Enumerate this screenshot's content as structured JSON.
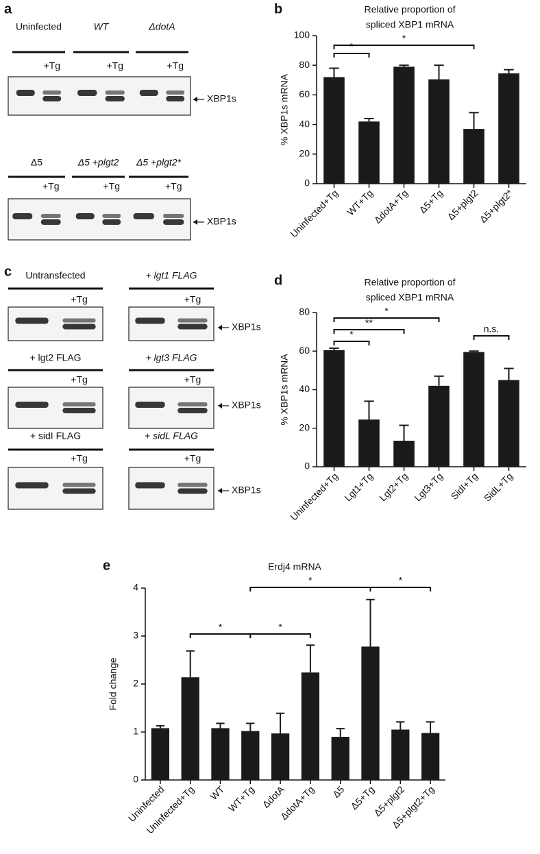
{
  "panel_labels": [
    "a",
    "b",
    "c",
    "d",
    "e"
  ],
  "gels": {
    "a": [
      {
        "labels": [
          "Uninfected",
          "WT",
          "ΔdotA"
        ],
        "treatment": "+Tg",
        "band": "XBP1s"
      },
      {
        "labels": [
          "Δ5",
          "Δ5 +plgt2",
          "Δ5 +plgt2*"
        ],
        "treatment": "+Tg",
        "band": "XBP1s"
      }
    ],
    "c": [
      {
        "labels": [
          "Untransfected",
          "+ lgt1 FLAG"
        ],
        "treatment": "+Tg",
        "band": "XBP1s"
      },
      {
        "labels": [
          "+ lgt2 FLAG",
          "+ lgt3 FLAG"
        ],
        "treatment": "+Tg",
        "band": "XBP1s"
      },
      {
        "labels": [
          "+ sidI FLAG",
          "+ sidL FLAG"
        ],
        "treatment": "+Tg",
        "band": "XBP1s"
      }
    ]
  },
  "chart_data": [
    {
      "type": "bar",
      "title": [
        "Relative proportion of",
        "spliced XBP1 mRNA"
      ],
      "y_label": "% XBP1s mRNA",
      "categories": [
        "Uninfected+Tg",
        "WT+Tg",
        "ΔdotA+Tg",
        "Δ5+Tg",
        "Δ5+plgt2",
        "Δ5+plgt2*"
      ],
      "values": [
        72,
        42,
        79,
        70.5,
        37,
        74.5
      ],
      "errors": [
        6,
        2,
        1,
        9.5,
        11,
        2.5
      ],
      "color": "#1a1a1a",
      "ylim": [
        0,
        100
      ],
      "yticks": [
        0,
        20,
        40,
        60,
        80,
        100
      ],
      "brackets": [
        {
          "between": [
            "Uninfected+Tg",
            "WT+Tg"
          ],
          "label": "*"
        },
        {
          "between": [
            "Uninfected+Tg",
            "Δ5+plgt2"
          ],
          "label": "*"
        }
      ]
    },
    {
      "type": "bar",
      "title": [
        "Relative proportion of",
        "spliced XBP1 mRNA"
      ],
      "y_label": "% XBP1s mRNA",
      "categories": [
        "Uninfected+Tg",
        "Lgt1+Tg",
        "Lgt2+Tg",
        "Lgt3+Tg",
        "SidI+Tg",
        "SidL+Tg"
      ],
      "values": [
        60.5,
        24.5,
        13.5,
        42,
        59.5,
        45
      ],
      "errors": [
        1,
        9.5,
        8,
        5,
        0.5,
        6
      ],
      "color": "#1a1a1a",
      "ylim": [
        0,
        80
      ],
      "yticks": [
        0,
        20,
        40,
        60,
        80
      ],
      "brackets": [
        {
          "between": [
            "Uninfected+Tg",
            "Lgt1+Tg"
          ],
          "label": "*"
        },
        {
          "between": [
            "Uninfected+Tg",
            "Lgt2+Tg"
          ],
          "label": "**"
        },
        {
          "between": [
            "Uninfected+Tg",
            "Lgt3+Tg"
          ],
          "label": "*"
        },
        {
          "between": [
            "SidI+Tg",
            "SidL+Tg"
          ],
          "label": "n.s."
        }
      ]
    },
    {
      "type": "bar",
      "title": [
        "Erdj4 mRNA"
      ],
      "y_label": "Fold change",
      "categories": [
        "Uninfected",
        "Uninfected+Tg",
        "WT",
        "WT+Tg",
        "ΔdotA",
        "ΔdotA+Tg",
        "Δ5",
        "Δ5+Tg",
        "Δ5+plgt2",
        "Δ5+plgt2+Tg"
      ],
      "values": [
        1.08,
        2.14,
        1.08,
        1.02,
        0.97,
        2.24,
        0.9,
        2.78,
        1.05,
        0.98
      ],
      "errors": [
        0.05,
        0.55,
        0.1,
        0.16,
        0.42,
        0.57,
        0.17,
        0.98,
        0.16,
        0.23
      ],
      "color": "#1a1a1a",
      "ylim": [
        0,
        4
      ],
      "yticks": [
        0,
        1,
        2,
        3,
        4
      ],
      "brackets": [
        {
          "between": [
            "Uninfected+Tg",
            "WT+Tg"
          ],
          "label": "*"
        },
        {
          "between": [
            "WT+Tg",
            "ΔdotA+Tg"
          ],
          "label": "*"
        },
        {
          "between": [
            "WT+Tg",
            "Δ5+Tg"
          ],
          "label": "*"
        },
        {
          "between": [
            "Δ5+Tg",
            "Δ5+plgt2+Tg"
          ],
          "label": "*"
        }
      ]
    }
  ]
}
